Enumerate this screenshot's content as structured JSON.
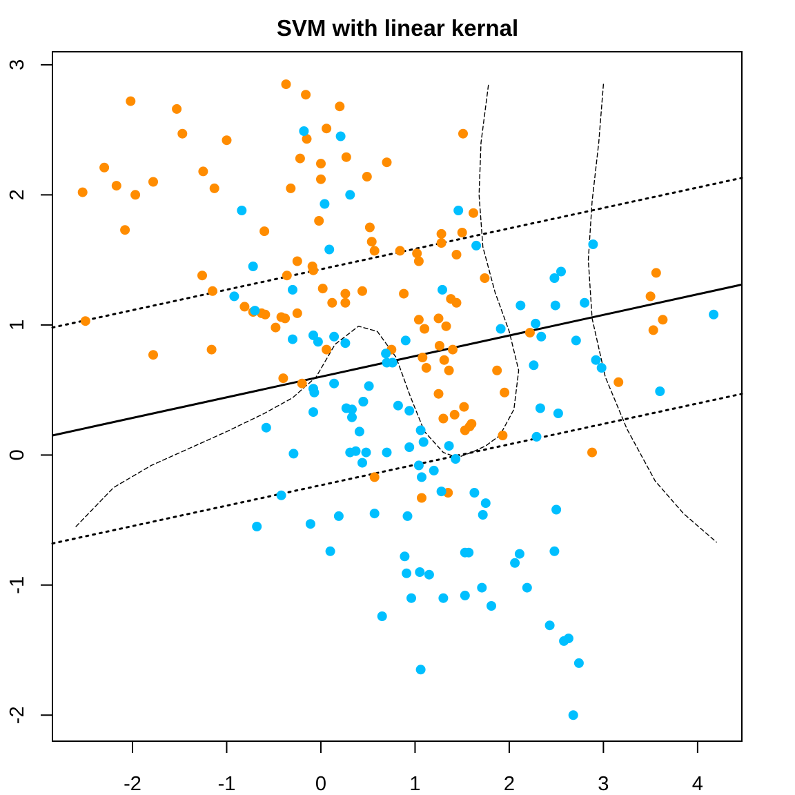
{
  "chart_data": {
    "type": "scatter",
    "title": "SVM with linear kernal",
    "xlabel": "",
    "ylabel": "",
    "xlim": [
      -2.85,
      4.47
    ],
    "ylim": [
      -2.2,
      3.1
    ],
    "x_ticks": [
      "-2",
      "-1",
      "0",
      "1",
      "2",
      "3",
      "4"
    ],
    "y_ticks": [
      "-2",
      "-1",
      "0",
      "1",
      "2",
      "3"
    ],
    "grid": false,
    "legend": "none",
    "colors": {
      "class_a": "#ff8c00",
      "class_b": "#00bfff",
      "line": "#000000"
    },
    "decision_boundary": {
      "points": [
        [
          -2.85,
          0.15
        ],
        [
          4.47,
          1.31
        ]
      ]
    },
    "margin_upper": {
      "points": [
        [
          -2.85,
          0.98
        ],
        [
          4.47,
          2.13
        ]
      ]
    },
    "margin_lower": {
      "points": [
        [
          -2.85,
          -0.68
        ],
        [
          4.47,
          0.47
        ]
      ]
    },
    "true_boundary_1": {
      "points": [
        [
          -2.6,
          -0.55
        ],
        [
          -2.2,
          -0.25
        ],
        [
          -1.8,
          -0.08
        ],
        [
          -1.4,
          0.05
        ],
        [
          -1.0,
          0.18
        ],
        [
          -0.6,
          0.32
        ],
        [
          -0.3,
          0.44
        ],
        [
          -0.05,
          0.6
        ],
        [
          0.15,
          0.85
        ],
        [
          0.4,
          0.99
        ],
        [
          0.6,
          0.95
        ],
        [
          0.8,
          0.75
        ],
        [
          0.95,
          0.45
        ],
        [
          1.1,
          0.18
        ],
        [
          1.3,
          0.02
        ],
        [
          1.45,
          -0.02
        ],
        [
          1.6,
          0.02
        ],
        [
          1.75,
          0.07
        ],
        [
          1.9,
          0.15
        ],
        [
          2.05,
          0.35
        ],
        [
          2.1,
          0.65
        ],
        [
          2.0,
          0.95
        ],
        [
          1.85,
          1.25
        ],
        [
          1.72,
          1.6
        ],
        [
          1.68,
          2.0
        ],
        [
          1.7,
          2.4
        ],
        [
          1.78,
          2.85
        ]
      ]
    },
    "true_boundary_2": {
      "points": [
        [
          3.0,
          2.85
        ],
        [
          2.95,
          2.4
        ],
        [
          2.88,
          1.95
        ],
        [
          2.84,
          1.5
        ],
        [
          2.88,
          1.05
        ],
        [
          3.02,
          0.6
        ],
        [
          3.25,
          0.2
        ],
        [
          3.55,
          -0.2
        ],
        [
          3.85,
          -0.45
        ],
        [
          4.2,
          -0.67
        ]
      ]
    },
    "series": [
      {
        "values": [
          [
            -2.53,
            2.02
          ],
          [
            -2.5,
            1.03
          ],
          [
            -2.3,
            2.21
          ],
          [
            -2.17,
            2.07
          ],
          [
            -2.08,
            1.73
          ],
          [
            -2.02,
            2.72
          ],
          [
            -1.97,
            2.0
          ],
          [
            -1.78,
            2.1
          ],
          [
            -1.78,
            0.77
          ],
          [
            -1.53,
            2.66
          ],
          [
            -1.47,
            2.47
          ],
          [
            -1.25,
            2.18
          ],
          [
            -1.26,
            1.38
          ],
          [
            -1.15,
            1.26
          ],
          [
            -1.16,
            0.81
          ],
          [
            -1.13,
            2.05
          ],
          [
            -1.0,
            2.42
          ],
          [
            -0.81,
            1.14
          ],
          [
            -0.72,
            1.1
          ],
          [
            -0.6,
            1.72
          ],
          [
            -0.63,
            1.09
          ],
          [
            -0.59,
            1.08
          ],
          [
            -0.48,
            0.98
          ],
          [
            -0.42,
            1.06
          ],
          [
            -0.4,
            0.59
          ],
          [
            -0.37,
            2.85
          ],
          [
            -0.38,
            1.05
          ],
          [
            -0.36,
            1.38
          ],
          [
            -0.32,
            2.05
          ],
          [
            -0.25,
            1.49
          ],
          [
            -0.25,
            1.09
          ],
          [
            -0.22,
            2.28
          ],
          [
            -0.2,
            0.55
          ],
          [
            -0.16,
            2.77
          ],
          [
            -0.15,
            2.43
          ],
          [
            -0.09,
            1.45
          ],
          [
            -0.08,
            1.42
          ],
          [
            -0.02,
            1.8
          ],
          [
            0.0,
            2.24
          ],
          [
            0.0,
            2.12
          ],
          [
            0.02,
            1.28
          ],
          [
            0.06,
            2.51
          ],
          [
            0.06,
            0.81
          ],
          [
            0.12,
            1.17
          ],
          [
            0.2,
            2.68
          ],
          [
            0.27,
            2.29
          ],
          [
            0.26,
            1.24
          ],
          [
            0.26,
            1.17
          ],
          [
            0.44,
            1.26
          ],
          [
            0.45,
            0.41
          ],
          [
            0.49,
            2.14
          ],
          [
            0.52,
            1.75
          ],
          [
            0.54,
            1.64
          ],
          [
            0.57,
            1.57
          ],
          [
            0.57,
            -0.17
          ],
          [
            0.7,
            2.25
          ],
          [
            0.75,
            0.81
          ],
          [
            0.84,
            1.57
          ],
          [
            0.88,
            1.24
          ],
          [
            1.02,
            1.55
          ],
          [
            1.04,
            1.49
          ],
          [
            1.04,
            1.04
          ],
          [
            1.07,
            -0.33
          ],
          [
            1.08,
            0.75
          ],
          [
            1.1,
            0.97
          ],
          [
            1.12,
            0.67
          ],
          [
            1.25,
            0.47
          ],
          [
            1.25,
            1.05
          ],
          [
            1.26,
            0.84
          ],
          [
            1.28,
            1.7
          ],
          [
            1.28,
            1.63
          ],
          [
            1.3,
            0.28
          ],
          [
            1.31,
            0.73
          ],
          [
            1.33,
            0.99
          ],
          [
            1.35,
            -0.29
          ],
          [
            1.36,
            0.65
          ],
          [
            1.38,
            1.2
          ],
          [
            1.4,
            0.81
          ],
          [
            1.42,
            0.31
          ],
          [
            1.44,
            1.17
          ],
          [
            1.44,
            1.54
          ],
          [
            1.5,
            1.71
          ],
          [
            1.51,
            2.47
          ],
          [
            1.52,
            0.37
          ],
          [
            1.53,
            0.19
          ],
          [
            1.58,
            0.22
          ],
          [
            1.6,
            0.24
          ],
          [
            1.62,
            1.86
          ],
          [
            1.74,
            1.36
          ],
          [
            1.87,
            0.65
          ],
          [
            1.93,
            0.15
          ],
          [
            1.95,
            0.48
          ],
          [
            2.22,
            0.94
          ],
          [
            2.88,
            0.02
          ],
          [
            3.16,
            0.56
          ],
          [
            3.5,
            1.22
          ],
          [
            3.53,
            0.96
          ],
          [
            3.56,
            1.4
          ],
          [
            3.63,
            1.04
          ]
        ]
      },
      {
        "values": [
          [
            -0.84,
            1.88
          ],
          [
            -0.92,
            1.22
          ],
          [
            -0.72,
            1.45
          ],
          [
            -0.7,
            1.11
          ],
          [
            -0.68,
            -0.55
          ],
          [
            -0.58,
            0.21
          ],
          [
            -0.42,
            -0.31
          ],
          [
            -0.3,
            1.27
          ],
          [
            -0.3,
            0.89
          ],
          [
            -0.29,
            0.01
          ],
          [
            -0.18,
            2.49
          ],
          [
            -0.11,
            -0.53
          ],
          [
            -0.08,
            0.92
          ],
          [
            -0.08,
            0.51
          ],
          [
            -0.08,
            0.33
          ],
          [
            -0.07,
            0.48
          ],
          [
            -0.03,
            0.87
          ],
          [
            0.04,
            1.93
          ],
          [
            0.09,
            1.58
          ],
          [
            0.1,
            -0.74
          ],
          [
            0.14,
            0.55
          ],
          [
            0.14,
            0.91
          ],
          [
            0.19,
            -0.47
          ],
          [
            0.21,
            2.45
          ],
          [
            0.26,
            0.86
          ],
          [
            0.27,
            0.36
          ],
          [
            0.31,
            2.0
          ],
          [
            0.31,
            0.02
          ],
          [
            0.33,
            0.29
          ],
          [
            0.33,
            0.35
          ],
          [
            0.37,
            0.03
          ],
          [
            0.41,
            0.18
          ],
          [
            0.44,
            -0.06
          ],
          [
            0.45,
            0.41
          ],
          [
            0.48,
            0.02
          ],
          [
            0.51,
            0.53
          ],
          [
            0.57,
            -0.45
          ],
          [
            0.65,
            -1.24
          ],
          [
            0.69,
            0.78
          ],
          [
            0.7,
            0.02
          ],
          [
            0.7,
            0.71
          ],
          [
            0.76,
            0.71
          ],
          [
            0.82,
            0.38
          ],
          [
            0.89,
            -0.78
          ],
          [
            0.9,
            0.88
          ],
          [
            0.92,
            -0.47
          ],
          [
            0.91,
            -0.91
          ],
          [
            0.94,
            0.34
          ],
          [
            0.96,
            -1.1
          ],
          [
            0.94,
            0.06
          ],
          [
            1.04,
            -0.08
          ],
          [
            1.05,
            -0.9
          ],
          [
            1.06,
            0.19
          ],
          [
            1.06,
            -1.65
          ],
          [
            1.07,
            -0.17
          ],
          [
            1.09,
            0.1
          ],
          [
            1.15,
            -0.92
          ],
          [
            1.2,
            -0.12
          ],
          [
            1.28,
            -0.28
          ],
          [
            1.3,
            -1.1
          ],
          [
            1.29,
            1.27
          ],
          [
            1.36,
            0.07
          ],
          [
            1.43,
            -0.03
          ],
          [
            1.46,
            1.88
          ],
          [
            1.53,
            -0.75
          ],
          [
            1.53,
            -1.08
          ],
          [
            1.57,
            -0.75
          ],
          [
            1.63,
            -0.29
          ],
          [
            1.65,
            1.61
          ],
          [
            1.71,
            -1.02
          ],
          [
            1.72,
            -0.46
          ],
          [
            1.75,
            -0.37
          ],
          [
            1.81,
            -1.16
          ],
          [
            1.91,
            0.97
          ],
          [
            2.06,
            -0.83
          ],
          [
            2.11,
            -0.76
          ],
          [
            2.12,
            1.15
          ],
          [
            2.19,
            -1.02
          ],
          [
            2.26,
            0.69
          ],
          [
            2.28,
            1.01
          ],
          [
            2.29,
            0.14
          ],
          [
            2.33,
            0.36
          ],
          [
            2.34,
            0.91
          ],
          [
            2.43,
            -1.31
          ],
          [
            2.48,
            -0.74
          ],
          [
            2.48,
            1.36
          ],
          [
            2.49,
            1.15
          ],
          [
            2.5,
            -0.42
          ],
          [
            2.52,
            0.32
          ],
          [
            2.55,
            1.41
          ],
          [
            2.58,
            -1.43
          ],
          [
            2.63,
            -1.41
          ],
          [
            2.68,
            -2.0
          ],
          [
            2.71,
            0.88
          ],
          [
            2.74,
            -1.6
          ],
          [
            2.8,
            1.17
          ],
          [
            2.89,
            1.62
          ],
          [
            2.92,
            0.73
          ],
          [
            2.98,
            0.67
          ],
          [
            3.6,
            0.49
          ],
          [
            4.17,
            1.08
          ]
        ]
      }
    ]
  }
}
